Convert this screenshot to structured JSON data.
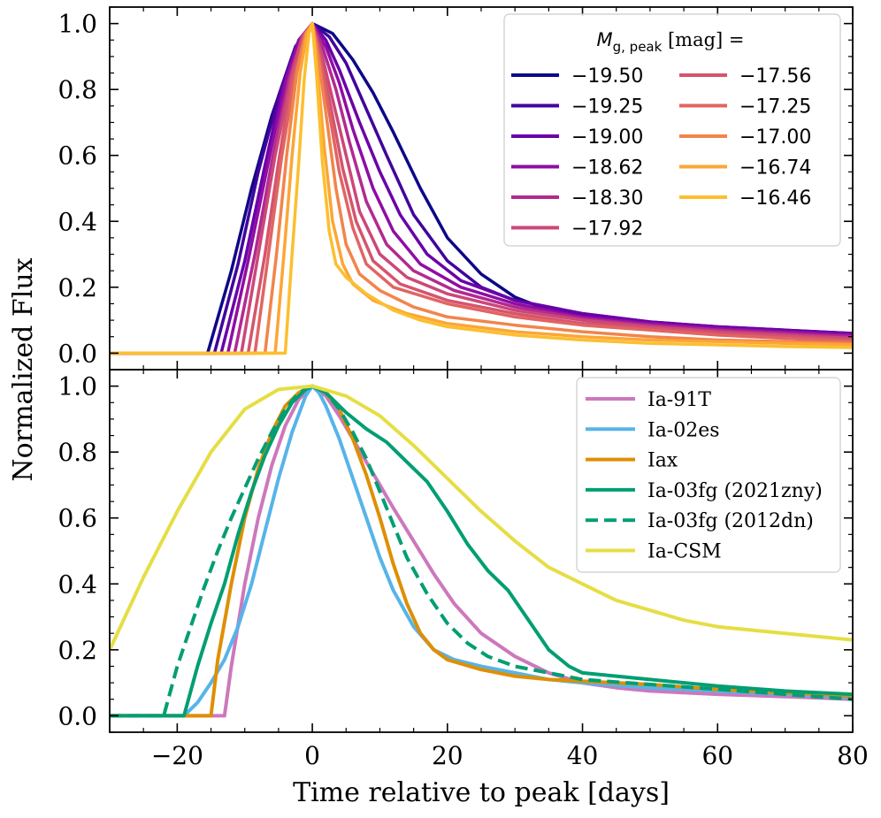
{
  "chart_data": [
    {
      "type": "line",
      "panel": "top",
      "ylabel": "Normalized Flux",
      "xlabel": "",
      "xlim": [
        -30,
        80
      ],
      "ylim": [
        -0.05,
        1.05
      ],
      "xticks": [
        -20,
        0,
        20,
        40,
        60,
        80
      ],
      "yticks": [
        0.0,
        0.2,
        0.4,
        0.6,
        0.8,
        1.0
      ],
      "ytick_labels": [
        "0.0",
        "0.2",
        "0.4",
        "0.6",
        "0.8",
        "1.0"
      ],
      "legend": {
        "title_pre": "M",
        "title_sub": "g, peak",
        "title_post": " [mag] =",
        "placement": "top-right",
        "columns": 2
      },
      "series": [
        {
          "name": "−19.50",
          "color": "#0d0887",
          "width": 3.5,
          "x": [
            -30,
            -15.5,
            -12,
            -9,
            -6,
            -3,
            0,
            3,
            6,
            9,
            12,
            16,
            20,
            25,
            30,
            35,
            40,
            50,
            60,
            70,
            80
          ],
          "y": [
            0,
            0,
            0.25,
            0.5,
            0.72,
            0.9,
            1.0,
            0.97,
            0.89,
            0.79,
            0.67,
            0.5,
            0.35,
            0.24,
            0.17,
            0.13,
            0.115,
            0.09,
            0.075,
            0.065,
            0.06
          ]
        },
        {
          "name": "−19.25",
          "color": "#41049d",
          "width": 3.5,
          "x": [
            -30,
            -14.5,
            -11,
            -8,
            -5,
            -2.5,
            0,
            2.5,
            5,
            8,
            11,
            15,
            20,
            25,
            30,
            40,
            50,
            60,
            70,
            80
          ],
          "y": [
            0,
            0,
            0.27,
            0.55,
            0.78,
            0.93,
            1.0,
            0.96,
            0.88,
            0.74,
            0.6,
            0.42,
            0.28,
            0.2,
            0.16,
            0.12,
            0.095,
            0.08,
            0.07,
            0.06
          ]
        },
        {
          "name": "−19.00",
          "color": "#6a00a8",
          "width": 3.5,
          "x": [
            -30,
            -13.5,
            -10,
            -7,
            -4.5,
            -2,
            0,
            2,
            4,
            7,
            10,
            13,
            17,
            22,
            30,
            40,
            50,
            60,
            70,
            80
          ],
          "y": [
            0,
            0,
            0.28,
            0.57,
            0.8,
            0.95,
            1.0,
            0.95,
            0.86,
            0.7,
            0.55,
            0.42,
            0.3,
            0.22,
            0.16,
            0.12,
            0.095,
            0.08,
            0.07,
            0.06
          ]
        },
        {
          "name": "−18.62",
          "color": "#8f0da4",
          "width": 3.5,
          "x": [
            -30,
            -12.5,
            -9.5,
            -6.5,
            -4,
            -2,
            0,
            2,
            4,
            6,
            9,
            12,
            16,
            22,
            30,
            40,
            50,
            60,
            70,
            80
          ],
          "y": [
            0,
            0,
            0.28,
            0.58,
            0.82,
            0.95,
            1.0,
            0.93,
            0.82,
            0.68,
            0.5,
            0.37,
            0.27,
            0.2,
            0.15,
            0.11,
            0.09,
            0.075,
            0.065,
            0.055
          ]
        },
        {
          "name": "−18.30",
          "color": "#b12a90",
          "width": 3.5,
          "x": [
            -30,
            -11.5,
            -8.5,
            -6,
            -3.5,
            -1.5,
            0,
            1.5,
            3.5,
            5.5,
            8,
            11,
            15,
            21,
            30,
            40,
            50,
            60,
            70,
            80
          ],
          "y": [
            0,
            0,
            0.3,
            0.58,
            0.83,
            0.96,
            1.0,
            0.93,
            0.8,
            0.64,
            0.46,
            0.33,
            0.25,
            0.19,
            0.14,
            0.105,
            0.085,
            0.07,
            0.06,
            0.05
          ]
        },
        {
          "name": "−17.92",
          "color": "#cc4778",
          "width": 3.5,
          "x": [
            -30,
            -10.5,
            -8,
            -5.5,
            -3,
            -1.5,
            0,
            1.5,
            3,
            5,
            7,
            10,
            14,
            20,
            30,
            40,
            50,
            60,
            70,
            80
          ],
          "y": [
            0,
            0,
            0.3,
            0.6,
            0.85,
            0.96,
            1.0,
            0.9,
            0.77,
            0.6,
            0.43,
            0.3,
            0.23,
            0.18,
            0.13,
            0.1,
            0.08,
            0.065,
            0.055,
            0.045
          ]
        },
        {
          "name": "−17.56",
          "color": "#d5546e",
          "width": 3.5,
          "x": [
            -30,
            -9.5,
            -7,
            -5,
            -3,
            -1.2,
            0,
            1.2,
            2.8,
            4.5,
            6.5,
            9,
            13,
            20,
            30,
            40,
            50,
            60,
            70,
            80
          ],
          "y": [
            0,
            0,
            0.3,
            0.58,
            0.83,
            0.96,
            1.0,
            0.9,
            0.74,
            0.56,
            0.4,
            0.28,
            0.21,
            0.16,
            0.12,
            0.09,
            0.075,
            0.06,
            0.05,
            0.04
          ]
        },
        {
          "name": "−17.25",
          "color": "#e16462",
          "width": 3.5,
          "x": [
            -30,
            -8.5,
            -6.5,
            -4.5,
            -2.5,
            -1,
            0,
            1,
            2.5,
            4,
            6,
            8,
            12,
            20,
            30,
            40,
            50,
            60,
            70,
            80
          ],
          "y": [
            0,
            0,
            0.3,
            0.6,
            0.85,
            0.97,
            1.0,
            0.9,
            0.73,
            0.55,
            0.38,
            0.27,
            0.2,
            0.15,
            0.11,
            0.085,
            0.07,
            0.055,
            0.045,
            0.035
          ]
        },
        {
          "name": "−17.00",
          "color": "#f2844b",
          "width": 3.5,
          "x": [
            -30,
            -7,
            -5.3,
            -3.8,
            -2.3,
            -1,
            0,
            1,
            2.2,
            3.5,
            5,
            7,
            10,
            15,
            20,
            30,
            40,
            50,
            60,
            70,
            80
          ],
          "y": [
            0,
            0,
            0.3,
            0.6,
            0.85,
            0.97,
            1.0,
            0.88,
            0.7,
            0.5,
            0.33,
            0.24,
            0.19,
            0.14,
            0.11,
            0.085,
            0.065,
            0.05,
            0.04,
            0.035,
            0.03
          ]
        },
        {
          "name": "−16.74",
          "color": "#fca636",
          "width": 3.5,
          "x": [
            -30,
            -5.5,
            -4.2,
            -3,
            -1.8,
            -0.8,
            0,
            0.8,
            1.8,
            3,
            4.5,
            6,
            9,
            14,
            20,
            30,
            40,
            50,
            60,
            70,
            80
          ],
          "y": [
            0,
            0,
            0.3,
            0.6,
            0.85,
            0.97,
            1.0,
            0.85,
            0.62,
            0.4,
            0.27,
            0.21,
            0.16,
            0.12,
            0.09,
            0.065,
            0.05,
            0.04,
            0.035,
            0.03,
            0.025
          ]
        },
        {
          "name": "−16.46",
          "color": "#fcbf2e",
          "width": 3.5,
          "x": [
            -30,
            -4,
            -3,
            -2,
            -1.2,
            -0.5,
            0,
            0.6,
            1.5,
            2.5,
            3.5,
            5,
            8,
            12,
            16,
            20,
            30,
            40,
            50,
            60,
            70,
            80
          ],
          "y": [
            0,
            0,
            0.3,
            0.58,
            0.83,
            0.97,
            1.0,
            0.85,
            0.58,
            0.37,
            0.27,
            0.23,
            0.18,
            0.13,
            0.1,
            0.08,
            0.055,
            0.04,
            0.03,
            0.025,
            0.02,
            0.017
          ]
        }
      ]
    },
    {
      "type": "line",
      "panel": "bottom",
      "ylabel": "Normalized Flux",
      "xlabel": "Time relative to peak [days]",
      "xlim": [
        -30,
        80
      ],
      "ylim": [
        -0.05,
        1.05
      ],
      "xticks": [
        -20,
        0,
        20,
        40,
        60,
        80
      ],
      "xtick_labels": [
        "−20",
        "0",
        "20",
        "40",
        "60",
        "80"
      ],
      "yticks": [
        0.0,
        0.2,
        0.4,
        0.6,
        0.8,
        1.0
      ],
      "ytick_labels": [
        "0.0",
        "0.2",
        "0.4",
        "0.6",
        "0.8",
        "1.0"
      ],
      "legend": {
        "placement": "top-right"
      },
      "series": [
        {
          "name": "Ia-91T",
          "color": "#cc78bc",
          "dash": false,
          "width": 4,
          "x": [
            -30,
            -13,
            -12,
            -10,
            -8,
            -6,
            -4,
            -2,
            0,
            2,
            4,
            6,
            8,
            10,
            12,
            15,
            18,
            21,
            25,
            30,
            35,
            40,
            45,
            50,
            60,
            70,
            80
          ],
          "y": [
            0,
            0,
            0.15,
            0.4,
            0.6,
            0.76,
            0.88,
            0.96,
            1.0,
            0.97,
            0.91,
            0.84,
            0.77,
            0.7,
            0.63,
            0.53,
            0.43,
            0.34,
            0.25,
            0.18,
            0.13,
            0.1,
            0.085,
            0.075,
            0.065,
            0.058,
            0.05
          ]
        },
        {
          "name": "Ia-02es",
          "color": "#56b4e9",
          "dash": false,
          "width": 4,
          "x": [
            -30,
            -19,
            -17,
            -15,
            -13,
            -11,
            -9,
            -7,
            -5,
            -3,
            -1,
            0,
            1,
            2,
            4,
            6,
            8,
            10,
            12,
            15,
            18,
            21,
            25,
            30,
            35,
            40,
            50,
            60,
            70,
            80
          ],
          "y": [
            0,
            0,
            0.04,
            0.1,
            0.17,
            0.27,
            0.4,
            0.56,
            0.72,
            0.86,
            0.97,
            1.0,
            0.98,
            0.94,
            0.84,
            0.72,
            0.6,
            0.48,
            0.38,
            0.27,
            0.2,
            0.17,
            0.15,
            0.13,
            0.11,
            0.1,
            0.085,
            0.075,
            0.065,
            0.055
          ]
        },
        {
          "name": "Iax",
          "color": "#de8f05",
          "dash": false,
          "width": 4,
          "x": [
            -30,
            -15,
            -14,
            -12,
            -10,
            -8,
            -6,
            -4,
            -2,
            0,
            2,
            4,
            6,
            8,
            10,
            12,
            14,
            16,
            18,
            20,
            25,
            30,
            35,
            40,
            50,
            60,
            70,
            80
          ],
          "y": [
            0,
            0,
            0.17,
            0.4,
            0.6,
            0.75,
            0.86,
            0.94,
            0.98,
            1.0,
            0.98,
            0.93,
            0.84,
            0.73,
            0.6,
            0.46,
            0.34,
            0.25,
            0.2,
            0.17,
            0.14,
            0.12,
            0.11,
            0.105,
            0.095,
            0.08,
            0.07,
            0.06
          ]
        },
        {
          "name": "Ia-03fg (2021zny)",
          "color": "#029e73",
          "dash": false,
          "width": 4,
          "x": [
            -30,
            -19,
            -17,
            -15,
            -13,
            -11,
            -9,
            -7,
            -5,
            -3,
            -1,
            0,
            2,
            5,
            8,
            11,
            14,
            17,
            20,
            23,
            26,
            29,
            32,
            35,
            38,
            40,
            45,
            50,
            60,
            70,
            80
          ],
          "y": [
            0,
            0,
            0.15,
            0.28,
            0.4,
            0.55,
            0.68,
            0.79,
            0.88,
            0.95,
            0.99,
            1.0,
            0.98,
            0.92,
            0.87,
            0.83,
            0.77,
            0.71,
            0.62,
            0.52,
            0.44,
            0.38,
            0.29,
            0.2,
            0.15,
            0.13,
            0.12,
            0.11,
            0.09,
            0.075,
            0.065
          ]
        },
        {
          "name": "Ia-03fg (2012dn)",
          "color": "#029e73",
          "dash": true,
          "width": 4,
          "x": [
            -30,
            -22,
            -20,
            -18,
            -16,
            -14,
            -12,
            -10,
            -8,
            -6,
            -4,
            -2,
            0,
            2,
            4,
            6,
            8,
            10,
            12,
            14,
            17,
            20,
            23,
            26,
            30,
            35,
            40,
            50,
            60,
            70,
            80
          ],
          "y": [
            0,
            0,
            0.15,
            0.27,
            0.39,
            0.5,
            0.6,
            0.69,
            0.78,
            0.86,
            0.93,
            0.98,
            1.0,
            0.98,
            0.93,
            0.86,
            0.78,
            0.68,
            0.58,
            0.48,
            0.37,
            0.28,
            0.22,
            0.18,
            0.15,
            0.13,
            0.11,
            0.095,
            0.08,
            0.065,
            0.05
          ]
        },
        {
          "name": "Ia-CSM",
          "color": "#e5de44",
          "dash": false,
          "width": 4,
          "x": [
            -30,
            -25,
            -20,
            -15,
            -10,
            -5,
            0,
            5,
            10,
            15,
            20,
            25,
            30,
            35,
            40,
            45,
            50,
            55,
            60,
            70,
            80
          ],
          "y": [
            0.2,
            0.42,
            0.62,
            0.8,
            0.93,
            0.99,
            1.0,
            0.97,
            0.91,
            0.82,
            0.72,
            0.62,
            0.53,
            0.45,
            0.4,
            0.35,
            0.32,
            0.29,
            0.27,
            0.25,
            0.23
          ]
        }
      ]
    }
  ]
}
